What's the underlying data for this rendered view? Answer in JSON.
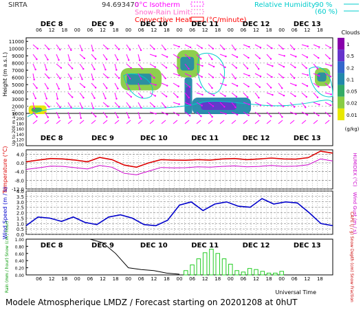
{
  "header": {
    "station": "SIRTA",
    "coords": "94.693470",
    "legend_left": [
      {
        "label": "0°C Isotherm",
        "color": "#ff00ff"
      },
      {
        "label": "Snow-Rain Limit",
        "color": "#ff66cc"
      },
      {
        "label": "Convective Heat.",
        "color": "#ff0000",
        "unit": "(°C/minute)"
      }
    ],
    "legend_right": {
      "label": "Relative Humidity",
      "levels": [
        "90 %",
        "(60 %)"
      ],
      "color": "#00cccc"
    },
    "clouds_title": "Clouds"
  },
  "footer": {
    "universal_time": "Universal Time",
    "model_title": "Modele Atmospherique LMDZ / Forecast starting on 20201208 at 0hUT"
  },
  "timeline": {
    "day_labels": [
      "DEC 8",
      "DEC 9",
      "DEC 10",
      "DEC 11",
      "DEC 12",
      "DEC 13"
    ],
    "hour_labels": [
      "06",
      "12",
      "18",
      "00",
      "06",
      "12",
      "18",
      "00",
      "06",
      "12",
      "18",
      "00",
      "06",
      "12",
      "18",
      "00",
      "06",
      "12",
      "18",
      "00",
      "06",
      "12",
      "18"
    ]
  },
  "colors": {
    "wind_arrow": "#ff00ff",
    "temperature": "#dd0000",
    "humidex": "#cc00cc",
    "wind_speed": "#0000cc",
    "precip_bars": "#22cc22",
    "snow_depth": "#000000",
    "rh_contour": "#00cccc"
  },
  "chart_data": [
    {
      "type": "heatmap",
      "title": "",
      "ylabel": "Height (m a.s.l.)",
      "ylabel_sub": "Up to 200 m a.g.l.",
      "y_ticks_upper": [
        "11000",
        "10000",
        "9000",
        "8000",
        "7000",
        "6000",
        "5000",
        "4000",
        "3000",
        "2000",
        "1000"
      ],
      "y_ticks_lower": [
        "200",
        "180",
        "160",
        "140",
        "120",
        "100"
      ],
      "colorbar": {
        "title": "Clouds",
        "unit": "(g/kg)",
        "labels": [
          "1",
          "0.5",
          "0.2",
          "0.1",
          "0.05",
          "0.02",
          "0.01"
        ],
        "colors": [
          "#8800aa",
          "#6633cc",
          "#3366cc",
          "#2288aa",
          "#33aa66",
          "#88cc44",
          "#e8e800"
        ]
      },
      "cloud_regions": [
        {
          "t_start": 0.05,
          "t_end": 0.4,
          "z_bottom": 900,
          "z_top": 2100,
          "level": 6
        },
        {
          "t_start": 1.85,
          "t_end": 2.65,
          "z_bottom": 4200,
          "z_top": 7300,
          "level": 5
        },
        {
          "t_start": 2.95,
          "t_end": 3.4,
          "z_bottom": 6000,
          "z_top": 9800,
          "level": 5
        },
        {
          "t_start": 3.1,
          "t_end": 3.25,
          "z_bottom": 900,
          "z_top": 6000,
          "level": 3
        },
        {
          "t_start": 3.25,
          "t_end": 4.4,
          "z_bottom": 900,
          "z_top": 3200,
          "level": 3
        },
        {
          "t_start": 5.65,
          "t_end": 5.95,
          "z_bottom": 4800,
          "z_top": 7300,
          "level": 5
        }
      ]
    },
    {
      "type": "line",
      "ylabel": "Temperature (°C)",
      "ylabel_right": "HUMIDEX (°C)",
      "y_ticks": [
        "4.0",
        "0.0",
        "-4.0",
        "-8.0",
        "-12.0"
      ],
      "ylim": [
        -12,
        6
      ],
      "series": [
        {
          "name": "",
          "values": [
            0.5,
            1.3,
            2.0,
            1.8,
            1.3,
            0.5,
            2.5,
            1.5,
            -1.0,
            -2.0,
            0.0,
            1.5,
            1.3,
            1.2,
            1.5,
            1.3,
            1.8,
            2.0,
            1.5,
            1.8,
            2.2,
            1.8,
            1.7,
            2.4,
            5.4,
            4.5
          ]
        },
        {
          "name": "",
          "values": [
            -3.0,
            -2.3,
            -1.5,
            -1.6,
            -2.2,
            -2.8,
            -1.2,
            -2.0,
            -4.8,
            -5.5,
            -3.8,
            -2.1,
            -2.3,
            -2.2,
            -1.8,
            -2.0,
            -1.6,
            -1.4,
            -1.8,
            -1.6,
            -1.2,
            -1.6,
            -1.5,
            -0.9,
            1.8,
            0.9
          ]
        }
      ]
    },
    {
      "type": "line",
      "ylabel": "Wind Speed (m / s)",
      "ylabel_right": "Wind Gust (m / s)",
      "y_ticks": [
        "4.0",
        "3.5",
        "3.0",
        "2.5",
        "2.0",
        "1.5",
        "1.0",
        "0.5",
        "0.0"
      ],
      "ylim": [
        0,
        4
      ],
      "series": [
        {
          "name": "",
          "values": [
            0.8,
            1.6,
            1.5,
            1.2,
            1.6,
            1.1,
            0.9,
            1.6,
            1.8,
            1.5,
            0.9,
            0.8,
            1.3,
            2.7,
            3.0,
            2.2,
            2.8,
            3.0,
            2.6,
            2.5,
            3.3,
            2.8,
            3.0,
            2.9,
            2.0,
            1.0,
            0.8
          ]
        }
      ]
    },
    {
      "type": "bar",
      "ylabel": "Rain (mm / hour) Snow (cm / hour)",
      "ylabel_right": "CAPE (J / g) Snow Depth (cm) Snow Fraction",
      "y_ticks": [
        "1.00",
        "0.80",
        "0.60",
        "0.40",
        "0.20",
        "0.00"
      ],
      "ylim": [
        0,
        1.0
      ],
      "x_hours": [
        75,
        78,
        81,
        84,
        87,
        90,
        93,
        96,
        99,
        102,
        105,
        108,
        111,
        114,
        117,
        120
      ],
      "precip_values": [
        0.12,
        0.28,
        0.45,
        0.62,
        0.72,
        0.6,
        0.45,
        0.3,
        0.12,
        0.08,
        0.18,
        0.15,
        0.1,
        0.05,
        0.05,
        0.1
      ],
      "snow_depth_values": [
        1.0,
        1.0,
        0.9,
        0.6,
        0.2,
        0.15,
        0.12,
        0.05,
        0.02
      ]
    }
  ]
}
